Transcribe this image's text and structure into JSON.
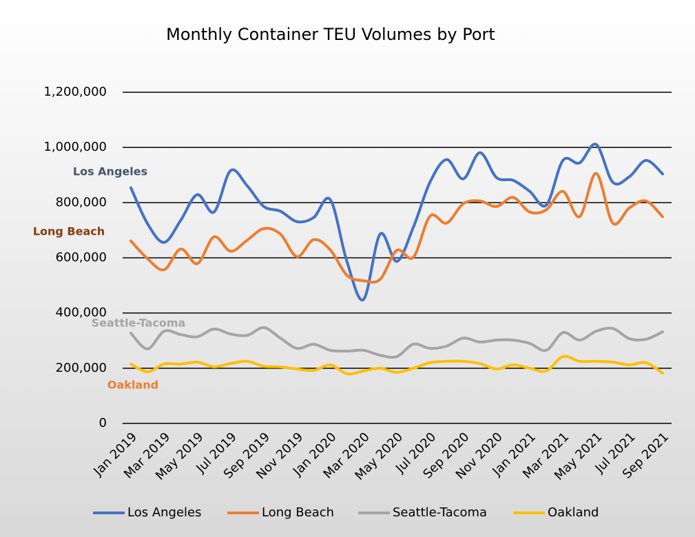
{
  "chart_data": {
    "type": "line",
    "title": "Monthly Container TEU Volumes by Port",
    "categories": [
      "Jan 2019",
      null,
      "Mar 2019",
      null,
      "May 2019",
      null,
      "Jul 2019",
      null,
      "Sep 2019",
      null,
      "Nov 2019",
      null,
      "Jan 2020",
      null,
      "Mar 2020",
      null,
      "May 2020",
      null,
      "Jul 2020",
      null,
      "Sep 2020",
      null,
      "Nov 2020",
      null,
      "Jan 2021",
      null,
      "Mar 2021",
      null,
      "May 2021",
      null,
      "Jul 2021",
      null,
      "Sep 2021"
    ],
    "series": [
      {
        "name": "Los Angeles",
        "color": "#4472c4",
        "values": [
          854000,
          724000,
          656000,
          736000,
          829000,
          766000,
          916000,
          861000,
          786000,
          769000,
          731000,
          746000,
          811000,
          587000,
          449000,
          686000,
          587000,
          711000,
          874000,
          956000,
          886000,
          981000,
          891000,
          881000,
          841000,
          791000,
          953000,
          944000,
          1011000,
          874000,
          894000,
          953000,
          904000
        ]
      },
      {
        "name": "Long Beach",
        "color": "#ed7d31",
        "values": [
          661000,
          597000,
          557000,
          632000,
          579000,
          676000,
          624000,
          664000,
          706000,
          686000,
          604000,
          666000,
          629000,
          537000,
          517000,
          522000,
          627000,
          602000,
          751000,
          726000,
          796000,
          806000,
          786000,
          819000,
          766000,
          774000,
          841000,
          749000,
          906000,
          726000,
          781000,
          806000,
          749000
        ]
      },
      {
        "name": "Seattle-Tacoma",
        "color": "#a5a5a5",
        "values": [
          327000,
          270000,
          334000,
          322000,
          314000,
          342000,
          324000,
          319000,
          347000,
          309000,
          272000,
          287000,
          265000,
          262000,
          265000,
          247000,
          242000,
          287000,
          272000,
          280000,
          309000,
          295000,
          302000,
          302000,
          290000,
          265000,
          329000,
          302000,
          334000,
          344000,
          307000,
          305000,
          332000
        ]
      },
      {
        "name": "Oakland",
        "color": "#ffc000",
        "values": [
          215000,
          187000,
          215000,
          215000,
          222000,
          205000,
          217000,
          225000,
          207000,
          205000,
          197000,
          192000,
          212000,
          180000,
          190000,
          200000,
          185000,
          200000,
          220000,
          225000,
          225000,
          217000,
          197000,
          212000,
          200000,
          190000,
          242000,
          225000,
          225000,
          222000,
          212000,
          220000,
          182000
        ]
      }
    ],
    "ylim": [
      0,
      1200000
    ],
    "yticks": [
      0,
      {
        "value": 200000,
        "label": "200,000"
      },
      {
        "value": 400000,
        "label": "400,000"
      },
      {
        "value": 600000,
        "label": "600,000"
      },
      {
        "value": 800000,
        "label": "800,000"
      },
      {
        "value": 1000000,
        "label": "1,000,000"
      },
      {
        "value": 1200000,
        "label": "1,200,000"
      }
    ],
    "grid": true,
    "legend": "bottom"
  }
}
